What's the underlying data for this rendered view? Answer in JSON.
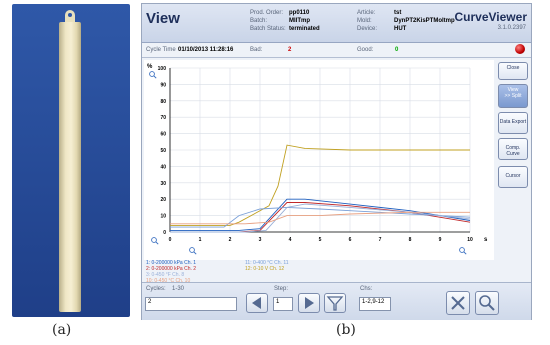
{
  "captions": {
    "a": "(a)",
    "b": "(b)"
  },
  "app": {
    "title": "View",
    "brand": "CurveViewer",
    "version": "3.1.0.2397",
    "header_fields": [
      {
        "label": "Prod. Order:",
        "value": "pp0110"
      },
      {
        "label": "Batch:",
        "value": "MIITmp"
      },
      {
        "label": "Batch Status:",
        "value": "terminated"
      },
      {
        "label": "Article:",
        "value": "tst"
      },
      {
        "label": "Mold:",
        "value": "DynPT2KisPTMoltmp"
      },
      {
        "label": "Device:",
        "value": "HUT"
      }
    ],
    "cycle_time_label": "Cycle Time",
    "cycle_time_value": "01/10/2013 11:28:16",
    "bad_label": "Bad:",
    "bad_value": "2",
    "good_label": "Good:",
    "good_value": "0",
    "buttons": {
      "close": "Close",
      "view": "View",
      "split": ">> Split",
      "data_export": "Data Export",
      "comp_curve": "Comp. Curve",
      "cursor": "Cursor"
    },
    "legend": [
      {
        "text": "1: 0-200000 kPa Ch. 1",
        "color": "#1f5fbf"
      },
      {
        "text": "2: 0-200000 kPa Ch. 2",
        "color": "#c0282a"
      },
      {
        "text": "3: 0-450 °F Ch. 8",
        "color": "#9ab0d8"
      },
      {
        "text": "10: 0-450 °C Ch. 10",
        "color": "#e8a080"
      },
      {
        "text": "11: 0-400 °C Ch. 11",
        "color": "#7aa0d8"
      },
      {
        "text": "12: 0-10 V Ch. 12",
        "color": "#c0a020"
      }
    ],
    "bottom": {
      "cycles_label": "Cycles:",
      "cycles_range": "1-30",
      "cycles_value": "2",
      "step_label": "Step:",
      "step_value": "1",
      "chs_label": "Chs:",
      "chs_value": "1-2,9-12"
    }
  },
  "chart_data": {
    "type": "line",
    "ylabel": "%",
    "xunit": "s",
    "xlim": [
      0,
      10
    ],
    "ylim": [
      0,
      100
    ],
    "xticks": [
      "0",
      "1",
      "2",
      "3",
      "4",
      "5",
      "6",
      "7",
      "8",
      "9",
      "10"
    ],
    "yticks": [
      "0",
      "10",
      "20",
      "30",
      "40",
      "50",
      "60",
      "70",
      "80",
      "90",
      "100"
    ],
    "grid": true,
    "series": [
      {
        "color": "#c0a020",
        "x": [
          0,
          2,
          2.3,
          3.3,
          3.6,
          3.9,
          4.5,
          6,
          8,
          10
        ],
        "y": [
          4,
          4,
          6,
          16,
          28,
          53,
          51,
          50,
          50,
          50
        ]
      },
      {
        "color": "#1f5fbf",
        "x": [
          0,
          2.3,
          3.0,
          3.9,
          4.5,
          6,
          8,
          10
        ],
        "y": [
          1,
          1,
          2,
          20,
          20,
          17,
          13,
          7
        ]
      },
      {
        "color": "#c0282a",
        "x": [
          0,
          2.3,
          3.0,
          3.9,
          4.5,
          6,
          8,
          10
        ],
        "y": [
          0,
          0,
          1,
          18,
          18,
          16,
          12,
          6
        ]
      },
      {
        "color": "#7aa0d8",
        "x": [
          0,
          1.8,
          2.3,
          3.0,
          3.9,
          5,
          6,
          8,
          10
        ],
        "y": [
          3,
          3,
          10,
          14,
          15,
          14,
          13,
          11,
          9
        ]
      },
      {
        "color": "#9ab0d8",
        "x": [
          0,
          2.5,
          3.2,
          3.9,
          4.5,
          6,
          8,
          10
        ],
        "y": [
          0,
          0,
          1,
          15,
          17,
          15,
          12,
          8
        ]
      },
      {
        "color": "#e8a080",
        "x": [
          0,
          2.5,
          3.3,
          3.9,
          5,
          6,
          8,
          10
        ],
        "y": [
          5,
          5,
          6,
          10,
          10,
          11,
          12,
          12
        ]
      }
    ]
  }
}
